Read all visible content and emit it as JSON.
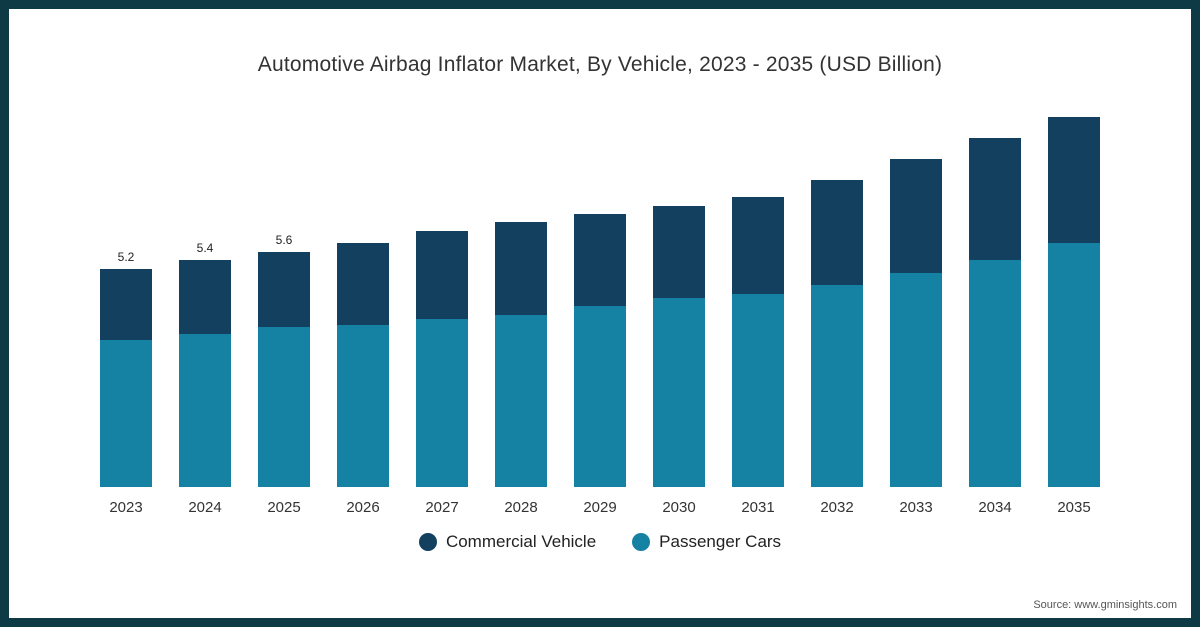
{
  "frame": {
    "border_color": "#0d3a44",
    "background": "#ffffff"
  },
  "title": "Automotive Airbag Inflator Market, By Vehicle, 2023 - 2035 (USD Billion)",
  "legend": [
    {
      "label": "Commercial Vehicle",
      "color": "#12405e"
    },
    {
      "label": "Passenger Cars",
      "color": "#1581a3"
    }
  ],
  "source": "Source: www.gminsights.com",
  "chart_data": {
    "type": "bar",
    "stacked": true,
    "title": "Automotive Airbag Inflator Market, By Vehicle, 2023 - 2035 (USD Billion)",
    "xlabel": "",
    "ylabel": "USD Billion",
    "ylim": [
      0,
      9
    ],
    "grid": false,
    "legend_position": "bottom",
    "categories": [
      "2023",
      "2024",
      "2025",
      "2026",
      "2027",
      "2028",
      "2029",
      "2030",
      "2031",
      "2032",
      "2033",
      "2034",
      "2035"
    ],
    "series": [
      {
        "name": "Passenger Cars",
        "color": "#1581a3",
        "values": [
          3.5,
          3.65,
          3.8,
          3.85,
          4.0,
          4.1,
          4.3,
          4.5,
          4.6,
          4.8,
          5.1,
          5.4,
          5.8
        ]
      },
      {
        "name": "Commercial Vehicle",
        "color": "#12405e",
        "values": [
          1.7,
          1.75,
          1.8,
          1.95,
          2.1,
          2.2,
          2.2,
          2.2,
          2.3,
          2.5,
          2.7,
          2.9,
          3.0
        ]
      }
    ],
    "totals": [
      5.2,
      5.4,
      5.6,
      5.8,
      6.1,
      6.3,
      6.5,
      6.7,
      6.9,
      7.3,
      7.8,
      8.3,
      8.8
    ],
    "data_labels": [
      "5.2",
      "5.4",
      "5.6",
      "",
      "",
      "",
      "",
      "",
      "",
      "",
      "",
      "",
      ""
    ]
  }
}
